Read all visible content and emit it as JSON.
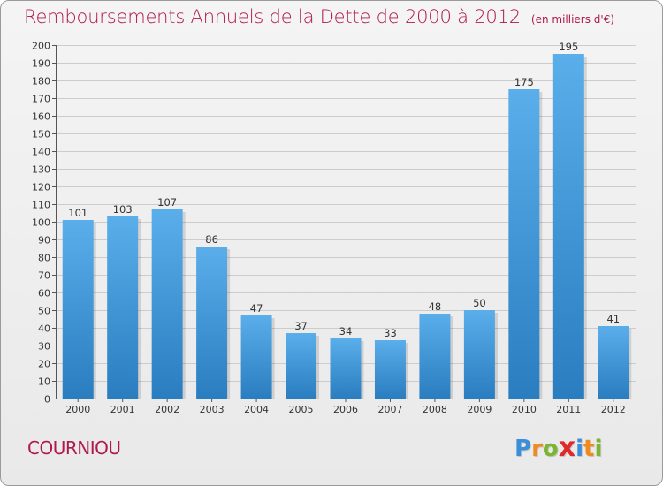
{
  "header": {
    "title": "Remboursements Annuels de la Dette de 2000 à 2012",
    "unit": "(en milliers d'€)"
  },
  "footer": {
    "commune": "COURNIOU",
    "brand": "Proxiti",
    "brand_letters": [
      {
        "char": "P",
        "color": "#3b8fd9"
      },
      {
        "char": "r",
        "color": "#f08a1c"
      },
      {
        "char": "o",
        "color": "#7ab534"
      },
      {
        "char": "x",
        "color": "#e02a2a"
      },
      {
        "char": "i",
        "color": "#3b8fd9"
      },
      {
        "char": "t",
        "color": "#f08a1c"
      },
      {
        "char": "i",
        "color": "#7ab534"
      }
    ]
  },
  "colors": {
    "title": "#b0184f",
    "bar_top": "#5aaeea",
    "bar_bottom": "#2a7dbf",
    "grid": "#cccccc",
    "axis": "#555555"
  },
  "chart_data": {
    "type": "bar",
    "title": "Remboursements Annuels de la Dette de 2000 à 2012",
    "categories": [
      "2000",
      "2001",
      "2002",
      "2003",
      "2004",
      "2005",
      "2006",
      "2007",
      "2008",
      "2009",
      "2010",
      "2011",
      "2012"
    ],
    "values": [
      101,
      103,
      107,
      86,
      47,
      37,
      34,
      33,
      48,
      50,
      175,
      195,
      41
    ],
    "ylim": [
      0,
      200
    ],
    "ytick_step": 10,
    "grid": true,
    "data_labels": true
  }
}
